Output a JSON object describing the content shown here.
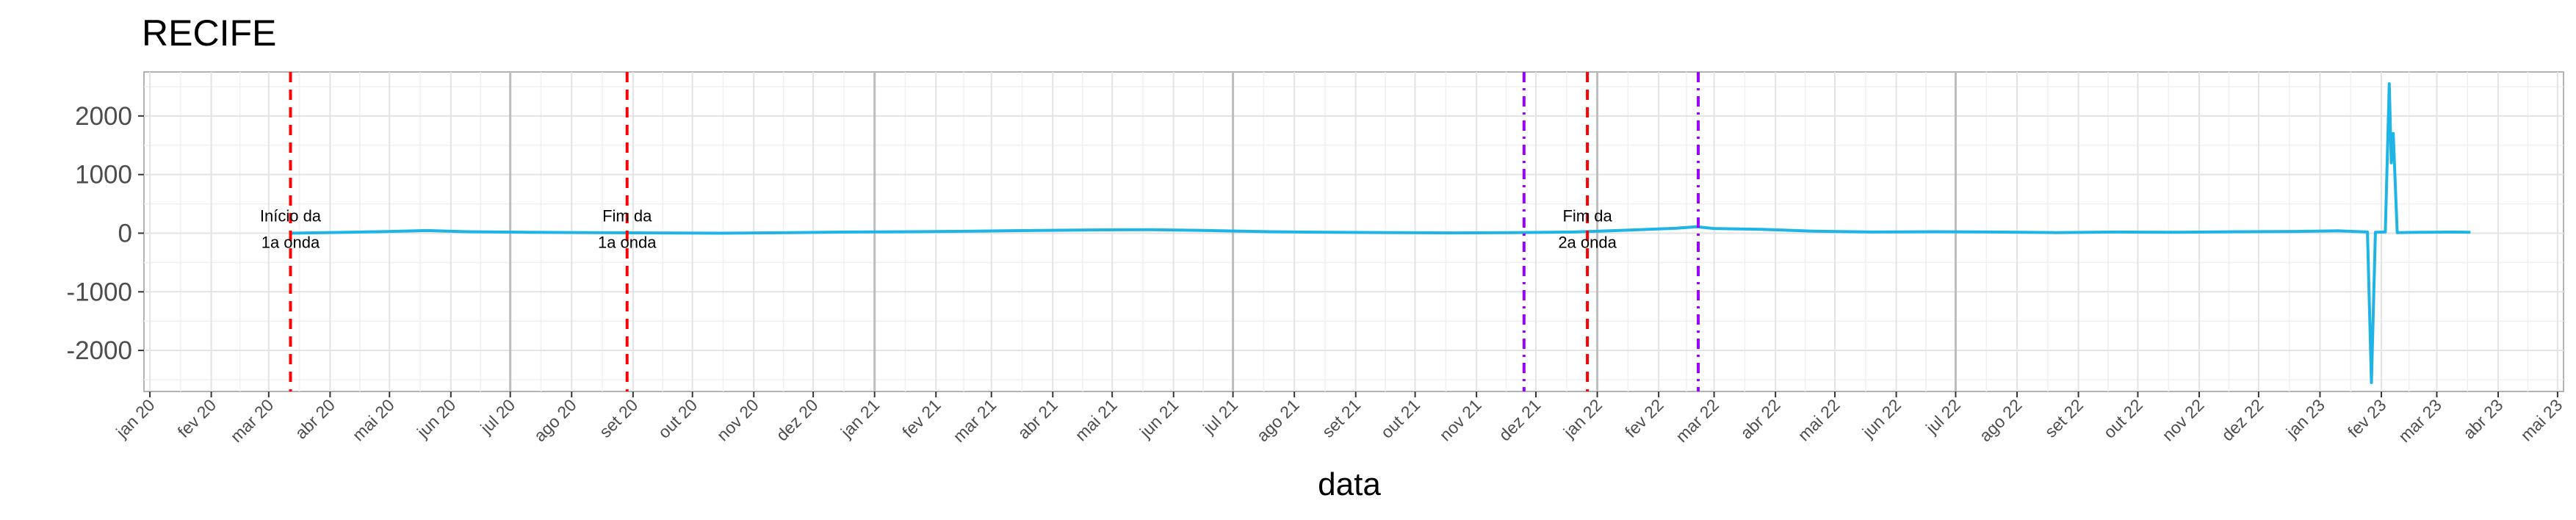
{
  "chart_data": {
    "type": "line",
    "title": "RECIFE",
    "xlabel": "data",
    "ylabel": "",
    "ylim": [
      -2700,
      2750
    ],
    "y_ticks": [
      -2000,
      -1000,
      0,
      1000,
      2000
    ],
    "y_tick_labels": [
      "-2000",
      "-1000",
      "0",
      "1000",
      "2000"
    ],
    "x_ticks": [
      {
        "date": "2020-01-01",
        "label": "jan 20"
      },
      {
        "date": "2020-02-01",
        "label": "fev 20"
      },
      {
        "date": "2020-03-01",
        "label": "mar 20"
      },
      {
        "date": "2020-04-01",
        "label": "abr 20"
      },
      {
        "date": "2020-05-01",
        "label": "mai 20"
      },
      {
        "date": "2020-06-01",
        "label": "jun 20"
      },
      {
        "date": "2020-07-01",
        "label": "jul 20"
      },
      {
        "date": "2020-08-01",
        "label": "ago 20"
      },
      {
        "date": "2020-09-01",
        "label": "set 20"
      },
      {
        "date": "2020-10-01",
        "label": "out 20"
      },
      {
        "date": "2020-11-01",
        "label": "nov 20"
      },
      {
        "date": "2020-12-01",
        "label": "dez 20"
      },
      {
        "date": "2021-01-01",
        "label": "jan 21"
      },
      {
        "date": "2021-02-01",
        "label": "fev 21"
      },
      {
        "date": "2021-03-01",
        "label": "mar 21"
      },
      {
        "date": "2021-04-01",
        "label": "abr 21"
      },
      {
        "date": "2021-05-01",
        "label": "mai 21"
      },
      {
        "date": "2021-06-01",
        "label": "jun 21"
      },
      {
        "date": "2021-07-01",
        "label": "jul 21"
      },
      {
        "date": "2021-08-01",
        "label": "ago 21"
      },
      {
        "date": "2021-09-01",
        "label": "set 21"
      },
      {
        "date": "2021-10-01",
        "label": "out 21"
      },
      {
        "date": "2021-11-01",
        "label": "nov 21"
      },
      {
        "date": "2021-12-01",
        "label": "dez 21"
      },
      {
        "date": "2022-01-01",
        "label": "jan 22"
      },
      {
        "date": "2022-02-01",
        "label": "fev 22"
      },
      {
        "date": "2022-03-01",
        "label": "mar 22"
      },
      {
        "date": "2022-04-01",
        "label": "abr 22"
      },
      {
        "date": "2022-05-01",
        "label": "mai 22"
      },
      {
        "date": "2022-06-01",
        "label": "jun 22"
      },
      {
        "date": "2022-07-01",
        "label": "jul 22"
      },
      {
        "date": "2022-08-01",
        "label": "ago 22"
      },
      {
        "date": "2022-09-01",
        "label": "set 22"
      },
      {
        "date": "2022-10-01",
        "label": "out 22"
      },
      {
        "date": "2022-11-01",
        "label": "nov 22"
      },
      {
        "date": "2022-12-01",
        "label": "dez 22"
      },
      {
        "date": "2023-01-01",
        "label": "jan 23"
      },
      {
        "date": "2023-02-01",
        "label": "fev 23"
      },
      {
        "date": "2023-03-01",
        "label": "mar 23"
      },
      {
        "date": "2023-04-01",
        "label": "abr 23"
      },
      {
        "date": "2023-05-01",
        "label": "mai 23"
      }
    ],
    "xlim": [
      "2019-12-29",
      "2023-05-04"
    ],
    "year_lines": [
      "2020-07-01",
      "2021-01-01",
      "2021-07-01",
      "2022-01-01",
      "2022-07-01"
    ],
    "grid": true,
    "series": [
      {
        "color": "#1fb4e6",
        "points": [
          [
            "2020-03-12",
            0
          ],
          [
            "2020-04-10",
            15
          ],
          [
            "2020-05-01",
            30
          ],
          [
            "2020-05-20",
            45
          ],
          [
            "2020-06-10",
            25
          ],
          [
            "2020-07-10",
            15
          ],
          [
            "2020-08-10",
            10
          ],
          [
            "2020-09-10",
            5
          ],
          [
            "2020-10-15",
            0
          ],
          [
            "2020-11-20",
            10
          ],
          [
            "2020-12-20",
            20
          ],
          [
            "2021-01-20",
            25
          ],
          [
            "2021-02-20",
            35
          ],
          [
            "2021-03-20",
            45
          ],
          [
            "2021-04-20",
            55
          ],
          [
            "2021-05-20",
            60
          ],
          [
            "2021-06-20",
            45
          ],
          [
            "2021-07-20",
            25
          ],
          [
            "2021-08-20",
            15
          ],
          [
            "2021-09-20",
            10
          ],
          [
            "2021-10-20",
            5
          ],
          [
            "2021-11-20",
            10
          ],
          [
            "2021-12-20",
            20
          ],
          [
            "2022-01-15",
            50
          ],
          [
            "2022-02-10",
            85
          ],
          [
            "2022-02-20",
            110
          ],
          [
            "2022-03-01",
            80
          ],
          [
            "2022-03-25",
            65
          ],
          [
            "2022-04-20",
            35
          ],
          [
            "2022-05-20",
            20
          ],
          [
            "2022-06-20",
            25
          ],
          [
            "2022-07-20",
            20
          ],
          [
            "2022-08-20",
            10
          ],
          [
            "2022-09-20",
            20
          ],
          [
            "2022-10-20",
            15
          ],
          [
            "2022-11-20",
            25
          ],
          [
            "2022-12-20",
            30
          ],
          [
            "2023-01-10",
            40
          ],
          [
            "2023-01-25",
            20
          ],
          [
            "2023-01-27",
            -2550
          ],
          [
            "2023-01-29",
            15
          ],
          [
            "2023-02-03",
            20
          ],
          [
            "2023-02-05",
            2550
          ],
          [
            "2023-02-06",
            1200
          ],
          [
            "2023-02-07",
            1700
          ],
          [
            "2023-02-09",
            10
          ],
          [
            "2023-02-20",
            15
          ],
          [
            "2023-03-10",
            20
          ],
          [
            "2023-03-18",
            15
          ]
        ]
      }
    ],
    "vlines": [
      {
        "date": "2020-03-12",
        "color": "#ff0000",
        "style": "dashed"
      },
      {
        "date": "2020-08-29",
        "color": "#ff0000",
        "style": "dashed"
      },
      {
        "date": "2021-11-25",
        "color": "#9a00ff",
        "style": "dashdot"
      },
      {
        "date": "2021-12-27",
        "color": "#ff0000",
        "style": "dashed"
      },
      {
        "date": "2022-02-21",
        "color": "#9a00ff",
        "style": "dashdot"
      }
    ],
    "annotations": [
      {
        "date": "2020-03-12",
        "y": 300,
        "text": "Início da"
      },
      {
        "date": "2020-03-12",
        "y": -150,
        "text": "1a onda"
      },
      {
        "date": "2020-08-29",
        "y": 300,
        "text": "Fim da"
      },
      {
        "date": "2020-08-29",
        "y": -150,
        "text": "1a onda"
      },
      {
        "date": "2021-12-27",
        "y": 300,
        "text": "Fim da"
      },
      {
        "date": "2021-12-27",
        "y": -150,
        "text": "2a onda"
      }
    ]
  }
}
